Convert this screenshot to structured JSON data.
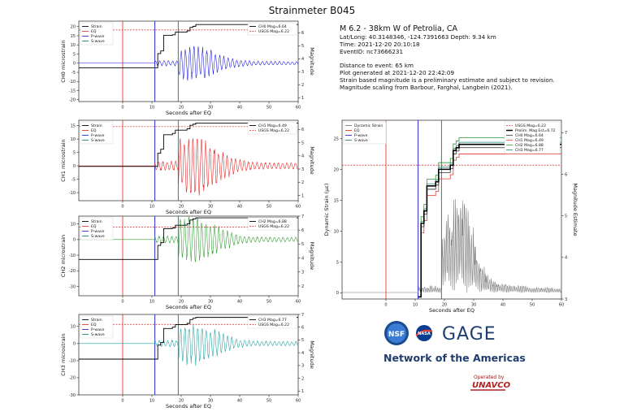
{
  "title": "Strainmeter B045",
  "info": {
    "event_title": "M 6.2 - 38km W of Petrolia, CA",
    "latlong": "Lat/Long: 40.3148346, -124.7391663  Depth: 9.34 km",
    "time": "Time: 2021-12-20 20:10:18",
    "event_id": "EventID: nc73666231",
    "distance": "Distance to event: 65 km",
    "generated": "Plot generated at 2021-12-20 22:42:09",
    "note1": "Strain based magnitude is a preliminary estimate and subject to revision.",
    "note2": "Magnitude scaling from Barbour, Farghal, Langbein (2021)."
  },
  "logos": {
    "nsf": "NSF",
    "nasa": "NASA",
    "gage": "GAGE",
    "network": "Network of the Americas",
    "operated": "Operated by",
    "unavco": "UNAVCO"
  },
  "colors": {
    "strain": "#000000",
    "eq": "#e8392d",
    "pwave": "#2a2ad0",
    "swave": "#1b8a7a",
    "ch0": "#1515e0",
    "ch1": "#e81c1c",
    "ch2": "#2b9a2b",
    "ch3": "#1aa0a0",
    "usgs": "#d62728",
    "dyn": "#777777",
    "ch0_mag": "#2f2f2f",
    "ch1_mag": "#555555",
    "ch2_mag": "#888888",
    "ch3_mag": "#666666"
  },
  "chart_data": [
    {
      "type": "line",
      "ylabel": "CH0 microstrain",
      "xlabel": "Seconds after EQ",
      "y2label": "Magnitude",
      "xlim": [
        -15,
        60
      ],
      "ylim": [
        -21,
        23
      ],
      "y2lim": [
        0.7,
        6.9
      ],
      "xticks": [
        0,
        10,
        20,
        30,
        40,
        50,
        60
      ],
      "yticks": [
        -20,
        -15,
        -10,
        -5,
        0,
        5,
        10,
        15,
        20
      ],
      "y2ticks": [
        1,
        2,
        3,
        4,
        5,
        6
      ],
      "p_wave": 11,
      "s_wave": 19,
      "eq_time": 0,
      "usgs_mag": 6.22,
      "ch_mag": 6.64,
      "legend_left": [
        "Strain",
        "EQ",
        "P-wave",
        "S-wave"
      ],
      "legend_right": [
        "CH0 Mag=6.64",
        "USGS Mag=6.22"
      ],
      "strain_level": 0,
      "amp": 9,
      "trace_color_key": "ch0",
      "mag_steps": [
        [
          -15,
          3.3
        ],
        [
          11,
          3.3
        ],
        [
          12,
          4.4
        ],
        [
          13,
          4.6
        ],
        [
          14,
          5.8
        ],
        [
          17,
          5.85
        ],
        [
          18,
          6.05
        ],
        [
          22,
          6.15
        ],
        [
          23,
          6.42
        ],
        [
          24,
          6.5
        ],
        [
          25,
          6.64
        ],
        [
          60,
          6.64
        ]
      ]
    },
    {
      "type": "line",
      "ylabel": "CH1 microstrain",
      "xlabel": "Seconds after EQ",
      "y2label": "Magnitude",
      "xlim": [
        -15,
        60
      ],
      "ylim": [
        -13,
        17
      ],
      "y2lim": [
        0.6,
        6.7
      ],
      "xticks": [
        0,
        10,
        20,
        30,
        40,
        50,
        60
      ],
      "yticks": [
        -10,
        -5,
        0,
        5,
        10,
        15
      ],
      "y2ticks": [
        1,
        2,
        3,
        4,
        5,
        6
      ],
      "p_wave": 11,
      "s_wave": 19,
      "eq_time": 0,
      "usgs_mag": 6.22,
      "ch_mag": 6.49,
      "legend_left": [
        "Strain",
        "EQ",
        "P-wave",
        "S-wave"
      ],
      "legend_right": [
        "CH1 Mag=6.49",
        "USGS Mag=6.22"
      ],
      "strain_level": 0,
      "amp": 11,
      "trace_color_key": "ch1",
      "mag_steps": [
        [
          -15,
          3.2
        ],
        [
          11,
          3.2
        ],
        [
          12,
          4.2
        ],
        [
          13,
          4.5
        ],
        [
          14,
          5.6
        ],
        [
          17,
          5.7
        ],
        [
          18,
          5.95
        ],
        [
          22,
          6.05
        ],
        [
          23,
          6.32
        ],
        [
          24,
          6.4
        ],
        [
          25,
          6.49
        ],
        [
          60,
          6.49
        ]
      ]
    },
    {
      "type": "line",
      "ylabel": "CH2 microstrain",
      "xlabel": "Seconds after EQ",
      "y2label": "Magnitude",
      "xlim": [
        -15,
        60
      ],
      "ylim": [
        -36,
        15
      ],
      "y2lim": [
        1.3,
        7.0
      ],
      "xticks": [
        0,
        10,
        20,
        30,
        40,
        50,
        60
      ],
      "yticks": [
        -30,
        -20,
        -10,
        0,
        10
      ],
      "y2ticks": [
        2,
        3,
        4,
        5,
        6,
        7
      ],
      "p_wave": 11,
      "s_wave": 19,
      "eq_time": 0,
      "usgs_mag": 6.22,
      "ch_mag": 6.88,
      "legend_left": [
        "Strain",
        "EQ",
        "P-wave",
        "S-wave"
      ],
      "legend_right": [
        "CH2 Mag=6.88",
        "USGS Mag=6.22"
      ],
      "strain_level": 0,
      "amp": 14,
      "trace_color_key": "ch2",
      "mag_steps": [
        [
          -15,
          3.9
        ],
        [
          11,
          3.9
        ],
        [
          12,
          4.9
        ],
        [
          13,
          5.1
        ],
        [
          14,
          6.1
        ],
        [
          17,
          6.15
        ],
        [
          18,
          6.35
        ],
        [
          22,
          6.45
        ],
        [
          23,
          6.72
        ],
        [
          24,
          6.8
        ],
        [
          25,
          6.88
        ],
        [
          60,
          6.88
        ]
      ]
    },
    {
      "type": "line",
      "ylabel": "CH3 microstrain",
      "xlabel": "Seconds after EQ",
      "y2label": "Magnitude",
      "xlim": [
        -15,
        60
      ],
      "ylim": [
        -30,
        17
      ],
      "y2lim": [
        0.7,
        7.0
      ],
      "xticks": [
        0,
        10,
        20,
        30,
        40,
        50,
        60
      ],
      "yticks": [
        -30,
        -20,
        -10,
        0,
        10
      ],
      "y2ticks": [
        1,
        2,
        3,
        4,
        5,
        6,
        7
      ],
      "p_wave": 11,
      "s_wave": 19,
      "eq_time": 0,
      "usgs_mag": 6.22,
      "ch_mag": 6.77,
      "legend_left": [
        "Strain",
        "EQ",
        "P-wave",
        "S-wave"
      ],
      "legend_right": [
        "CH3 Mag=6.77",
        "USGS Mag=6.22"
      ],
      "strain_level": 0,
      "amp": 12,
      "trace_color_key": "ch3",
      "mag_steps": [
        [
          -15,
          3.5
        ],
        [
          11,
          3.5
        ],
        [
          12,
          4.6
        ],
        [
          13,
          4.8
        ],
        [
          14,
          5.9
        ],
        [
          17,
          6.0
        ],
        [
          18,
          6.2
        ],
        [
          22,
          6.3
        ],
        [
          23,
          6.6
        ],
        [
          24,
          6.7
        ],
        [
          25,
          6.77
        ],
        [
          60,
          6.77
        ]
      ]
    },
    {
      "type": "line",
      "ylabel": "Dynamic Strain (με)",
      "xlabel": "Seconds after EQ",
      "y2label": "Magnitude Estimate",
      "xlim": [
        -15,
        60
      ],
      "ylim": [
        -1,
        28
      ],
      "y2lim": [
        3.0,
        7.3
      ],
      "xticks": [
        0,
        10,
        20,
        30,
        40,
        50,
        60
      ],
      "yticks": [
        0,
        5,
        10,
        15,
        20,
        25
      ],
      "y2ticks": [
        3,
        4,
        5,
        6,
        7
      ],
      "p_wave": 11,
      "s_wave": 19,
      "eq_time": 0,
      "usgs_mag": 6.22,
      "prelim_mag": 6.72,
      "legend_left": [
        "Dynamic Strain",
        "EQ",
        "P-wave",
        "S-wave"
      ],
      "legend_right": [
        "USGS Mag=6.22",
        "Prelim. Mag Est=6.72",
        "CH0 Mag=6.64",
        "CH1 Mag=6.49",
        "CH2 Mag=6.88",
        "CH3 Mag=6.77"
      ],
      "dyn_peak": 15.5,
      "mag_final": {
        "prelim": 6.72,
        "ch0": 6.64,
        "ch1": 6.49,
        "ch2": 6.88,
        "ch3": 6.77
      }
    }
  ]
}
